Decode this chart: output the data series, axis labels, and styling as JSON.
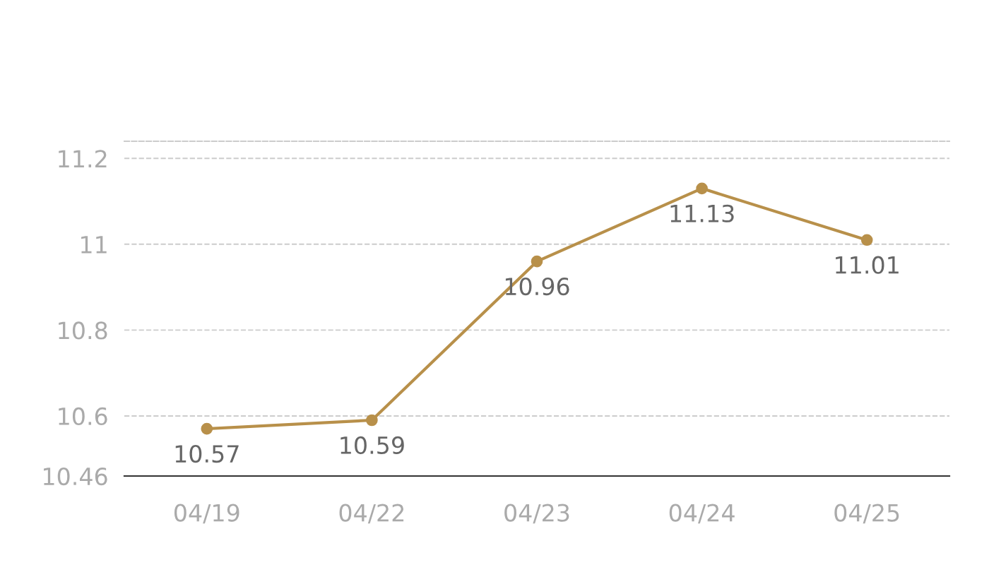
{
  "chart_data": {
    "type": "line",
    "categories": [
      "04/19",
      "04/22",
      "04/23",
      "04/24",
      "04/25"
    ],
    "series": [
      {
        "color": "#b8904a",
        "values": [
          10.57,
          10.59,
          10.96,
          11.13,
          11.01
        ]
      }
    ],
    "ylim": [
      10.46,
      11.24
    ],
    "yticks": [
      10.46,
      10.6,
      10.8,
      11,
      11.2
    ],
    "grid": "y",
    "marker": "circle",
    "line_style": "solid",
    "data_labels": true
  }
}
